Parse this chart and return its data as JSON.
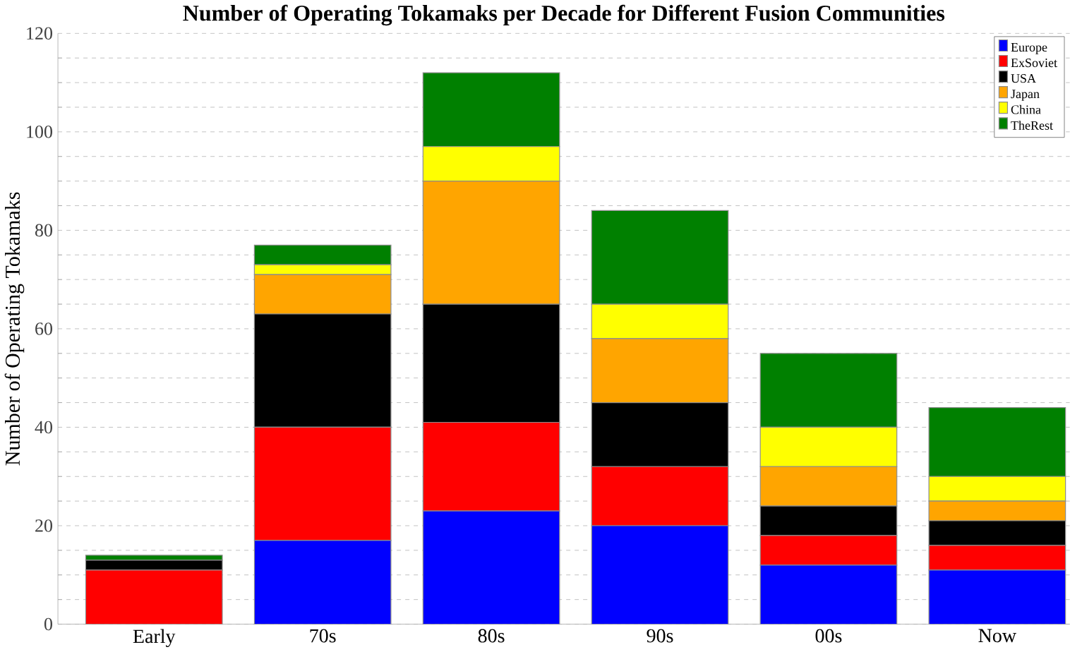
{
  "chart_data": {
    "type": "bar",
    "title": "Number of Operating Tokamaks per Decade for Different Fusion Communities",
    "ylabel": "Number of Operating Tokamaks",
    "categories": [
      "Early",
      "70s",
      "80s",
      "90s",
      "00s",
      "Now"
    ],
    "stacked": true,
    "series": [
      {
        "name": "Europe",
        "color": "#0000ff",
        "values": [
          0,
          17,
          23,
          20,
          12,
          11
        ]
      },
      {
        "name": "ExSoviet",
        "color": "#ff0000",
        "values": [
          11,
          23,
          18,
          12,
          6,
          5
        ]
      },
      {
        "name": "USA",
        "color": "#000000",
        "values": [
          2,
          23,
          24,
          13,
          6,
          5
        ]
      },
      {
        "name": "Japan",
        "color": "#ffa500",
        "values": [
          0,
          8,
          25,
          13,
          8,
          4
        ]
      },
      {
        "name": "China",
        "color": "#ffff00",
        "values": [
          0,
          2,
          7,
          7,
          8,
          5
        ]
      },
      {
        "name": "TheRest",
        "color": "#008000",
        "values": [
          1,
          4,
          15,
          19,
          15,
          14
        ]
      }
    ],
    "ylim": [
      0,
      120
    ],
    "yticks": [
      0,
      20,
      40,
      60,
      80,
      100,
      120
    ],
    "grid": "y",
    "legend": "top right"
  }
}
